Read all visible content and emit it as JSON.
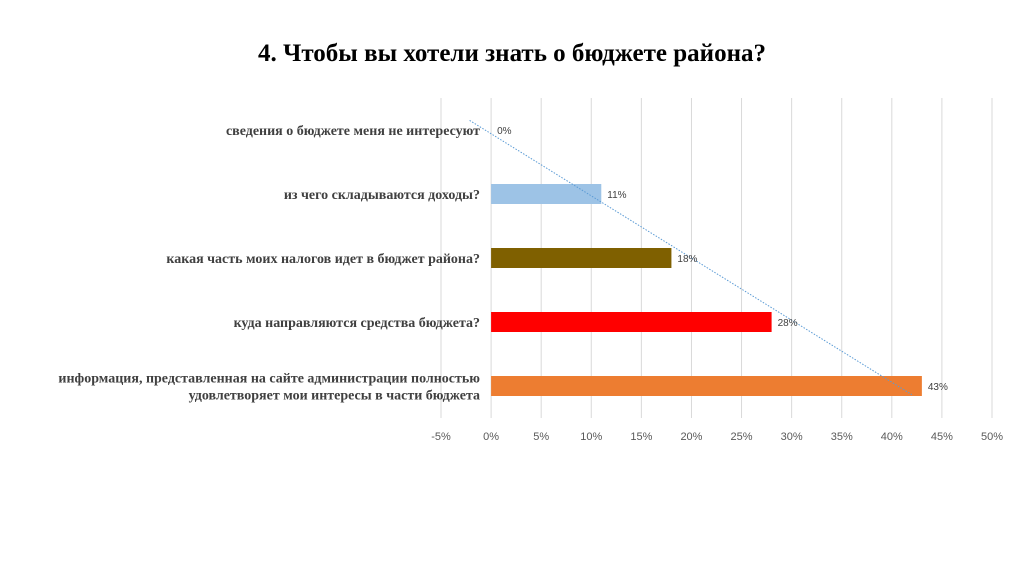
{
  "chart_data": {
    "type": "bar",
    "orientation": "horizontal",
    "title": "4. Чтобы вы хотели знать о бюджете района?",
    "categories": [
      "сведения о бюджете меня не интересуют",
      "из чего складываются доходы?",
      "какая часть моих налогов идет в бюджет района?",
      "куда направляются средства бюджета?",
      "информация, представленная на сайте администрации полностью удовлетворяет мои интересы в части бюджета"
    ],
    "category_lines": [
      [
        "сведения о бюджете меня не интересуют"
      ],
      [
        "из чего складываются доходы?"
      ],
      [
        "какая часть моих налогов идет в бюджет района?"
      ],
      [
        "куда направляются средства бюджета?"
      ],
      [
        "информация, представленная на сайте администрации полностью",
        "удовлетворяет мои интересы в части бюджета"
      ]
    ],
    "values": [
      0,
      11,
      18,
      28,
      43
    ],
    "data_labels": [
      "0%",
      "11%",
      "18%",
      "28%",
      "43%"
    ],
    "colors": [
      "#9dc3e6",
      "#9dc3e6",
      "#7f6000",
      "#ff0000",
      "#ed7d31"
    ],
    "xlim": [
      -5,
      50
    ],
    "xticks": [
      -5,
      0,
      5,
      10,
      15,
      20,
      25,
      30,
      35,
      40,
      45,
      50
    ],
    "xtick_labels": [
      "-5%",
      "0%",
      "5%",
      "10%",
      "15%",
      "20%",
      "25%",
      "30%",
      "35%",
      "40%",
      "45%",
      "50%"
    ],
    "grid": true,
    "trendline": {
      "type": "linear",
      "color": "#5b9bd5",
      "style": "dotted"
    },
    "legend": "none"
  }
}
